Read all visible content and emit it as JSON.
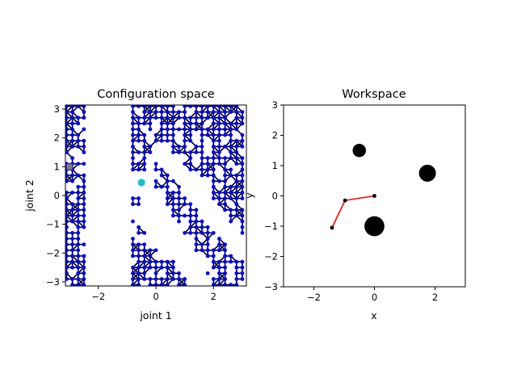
{
  "chart_data": [
    {
      "type": "scatter",
      "title": "Configuration space",
      "xlabel": "joint 1",
      "ylabel": "joint 2",
      "xlim": [
        -3.1416,
        3.1416
      ],
      "ylim": [
        -3.1416,
        3.1416
      ],
      "xticks": [
        -2,
        0,
        2
      ],
      "yticks": [
        -3,
        -2,
        -1,
        0,
        1,
        2,
        3
      ],
      "grid": false,
      "node_color": "#0000ff",
      "edge_color": "#000000",
      "obstacle_bands": [
        {
          "j1_min": -3.1416,
          "j1_max": -3.1416,
          "j2_min": -3.1,
          "j2_max": 3.1
        },
        {
          "j1_min": -2.45,
          "j1_max": -2.45,
          "j2_min": -3.1,
          "j2_max": 3.1
        }
      ],
      "free_grid_regions": [
        {
          "j1_min": -3.1,
          "j1_max": -2.5,
          "j2_min": -3.1,
          "j2_max": 3.1
        },
        {
          "j1_min": -0.8,
          "j1_max": 3.1,
          "j2_min": -3.1,
          "j2_max": 3.1
        }
      ],
      "diagonal_obstacles": [
        {
          "from": [
            -0.6,
            0.6
          ],
          "to": [
            1.6,
            -3.1
          ],
          "width": 0.7
        },
        {
          "from": [
            0.2,
            1.5
          ],
          "to": [
            3.1,
            -2.0
          ],
          "width": 0.6
        },
        {
          "from": [
            -0.6,
            -0.6
          ],
          "to": [
            0.6,
            -2.1
          ],
          "width": 0.45
        }
      ],
      "start": {
        "x": -3.0,
        "y": 1.0,
        "color": "#7f7f7f"
      },
      "goal": {
        "x": -0.5,
        "y": 0.45,
        "color": "#17becf"
      }
    },
    {
      "type": "scatter",
      "title": "Workspace",
      "xlabel": "x",
      "ylabel": "y",
      "xlim": [
        -3,
        3
      ],
      "ylim": [
        -3,
        3
      ],
      "xticks": [
        -2,
        0,
        2
      ],
      "yticks": [
        -3,
        -2,
        -1,
        0,
        1,
        2,
        3
      ],
      "grid": false,
      "obstacles": [
        {
          "x": -0.5,
          "y": 1.5,
          "r": 0.22
        },
        {
          "x": 1.75,
          "y": 0.75,
          "r": 0.28
        },
        {
          "x": 0.0,
          "y": -1.0,
          "r": 0.33
        }
      ],
      "arm": {
        "joints": [
          [
            0,
            0
          ],
          [
            -0.97,
            -0.15
          ],
          [
            -1.4,
            -1.05
          ]
        ],
        "link_color": "#ff0000",
        "joint_color": "#000000"
      }
    }
  ]
}
